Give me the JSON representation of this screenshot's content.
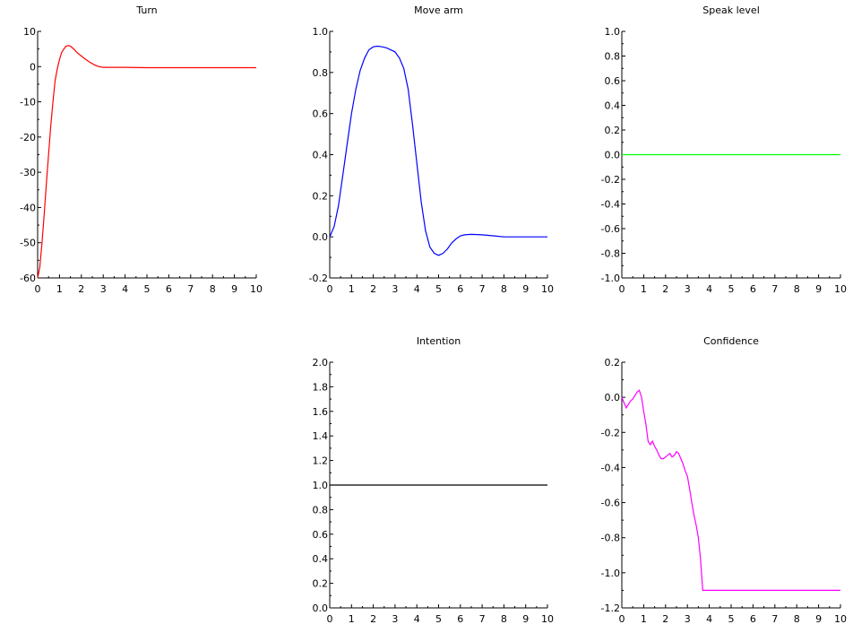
{
  "chart_data": [
    {
      "type": "line",
      "title": "Turn",
      "xlim": [
        0,
        10
      ],
      "ylim": [
        -60,
        10
      ],
      "xticks": [
        "0",
        "1",
        "2",
        "3",
        "4",
        "5",
        "6",
        "7",
        "8",
        "9",
        "10"
      ],
      "yticks": [
        "10",
        "0",
        "-10",
        "-20",
        "-30",
        "-40",
        "-50",
        "-60"
      ],
      "yvalues": [
        10,
        0,
        -10,
        -20,
        -30,
        -40,
        -50,
        -60
      ],
      "color": "#ff0000",
      "grid": false,
      "series": [
        {
          "x": [
            0,
            0.1,
            0.2,
            0.3,
            0.4,
            0.5,
            0.6,
            0.7,
            0.8,
            0.9,
            1.0,
            1.1,
            1.2,
            1.3,
            1.4,
            1.5,
            1.6,
            1.7,
            1.8,
            2.0,
            2.2,
            2.4,
            2.6,
            2.8,
            3.0,
            3.5,
            4,
            5,
            6,
            7,
            8,
            9,
            10
          ],
          "y": [
            -60,
            -57,
            -50,
            -42,
            -33,
            -25,
            -17,
            -10,
            -4,
            -0.5,
            2,
            4,
            5,
            5.8,
            6,
            5.8,
            5.3,
            4.7,
            4,
            3,
            2,
            1.2,
            0.5,
            0,
            -0.2,
            -0.2,
            -0.2,
            -0.3,
            -0.3,
            -0.3,
            -0.3,
            -0.3,
            -0.3
          ]
        }
      ]
    },
    {
      "type": "line",
      "title": "Move arm",
      "xlim": [
        0,
        10
      ],
      "ylim": [
        -0.2,
        1.0
      ],
      "xticks": [
        "0",
        "1",
        "2",
        "3",
        "4",
        "5",
        "6",
        "7",
        "8",
        "9",
        "10"
      ],
      "yticks": [
        "1.0",
        "0.8",
        "0.6",
        "0.4",
        "0.2",
        "0.0",
        "-0.2"
      ],
      "yvalues": [
        1.0,
        0.8,
        0.6,
        0.4,
        0.2,
        0.0,
        -0.2
      ],
      "color": "#0000ff",
      "grid": false,
      "series": [
        {
          "x": [
            0,
            0.2,
            0.4,
            0.6,
            0.8,
            1.0,
            1.2,
            1.4,
            1.6,
            1.8,
            2.0,
            2.2,
            2.4,
            2.6,
            2.8,
            3.0,
            3.2,
            3.4,
            3.6,
            3.8,
            4.0,
            4.2,
            4.4,
            4.6,
            4.8,
            5.0,
            5.2,
            5.4,
            5.6,
            5.8,
            6.0,
            6.2,
            6.5,
            7,
            7.5,
            8,
            9,
            10
          ],
          "y": [
            0,
            0.05,
            0.15,
            0.3,
            0.45,
            0.6,
            0.72,
            0.81,
            0.87,
            0.91,
            0.925,
            0.928,
            0.925,
            0.92,
            0.91,
            0.9,
            0.87,
            0.82,
            0.72,
            0.55,
            0.36,
            0.17,
            0.03,
            -0.05,
            -0.08,
            -0.09,
            -0.08,
            -0.06,
            -0.03,
            -0.01,
            0.005,
            0.01,
            0.012,
            0.01,
            0.005,
            0.0,
            0.0,
            0.0
          ]
        }
      ]
    },
    {
      "type": "line",
      "title": "Speak level",
      "xlim": [
        0,
        10
      ],
      "ylim": [
        -1.0,
        1.0
      ],
      "xticks": [
        "0",
        "1",
        "2",
        "3",
        "4",
        "5",
        "6",
        "7",
        "8",
        "9",
        "10"
      ],
      "yticks": [
        "1.0",
        "0.8",
        "0.6",
        "0.4",
        "0.2",
        "0.0",
        "-0.2",
        "-0.4",
        "-0.6",
        "-0.8",
        "-1.0"
      ],
      "yvalues": [
        1.0,
        0.8,
        0.6,
        0.4,
        0.2,
        0.0,
        -0.2,
        -0.4,
        -0.6,
        -0.8,
        -1.0
      ],
      "color": "#00ff00",
      "grid": false,
      "series": [
        {
          "x": [
            0,
            10
          ],
          "y": [
            0,
            0
          ]
        }
      ]
    },
    {
      "type": "line",
      "title": "Intention",
      "xlim": [
        0,
        10
      ],
      "ylim": [
        0.0,
        2.0
      ],
      "xticks": [
        "0",
        "1",
        "2",
        "3",
        "4",
        "5",
        "6",
        "7",
        "8",
        "9",
        "10"
      ],
      "yticks": [
        "2.0",
        "1.8",
        "1.6",
        "1.4",
        "1.2",
        "1.0",
        "0.8",
        "0.6",
        "0.4",
        "0.2",
        "0.0"
      ],
      "yvalues": [
        2.0,
        1.8,
        1.6,
        1.4,
        1.2,
        1.0,
        0.8,
        0.6,
        0.4,
        0.2,
        0.0
      ],
      "color": "#000000",
      "grid": false,
      "series": [
        {
          "x": [
            0,
            10
          ],
          "y": [
            1,
            1
          ]
        }
      ]
    },
    {
      "type": "line",
      "title": "Confidence",
      "xlim": [
        0,
        10
      ],
      "ylim": [
        -1.2,
        0.2
      ],
      "xticks": [
        "0",
        "1",
        "2",
        "3",
        "4",
        "5",
        "6",
        "7",
        "8",
        "9",
        "10"
      ],
      "yticks": [
        "0.2",
        "0.0",
        "-0.2",
        "-0.4",
        "-0.6",
        "-0.8",
        "-1.0",
        "-1.2"
      ],
      "yvalues": [
        0.2,
        0.0,
        -0.2,
        -0.4,
        -0.6,
        -0.8,
        -1.0,
        -1.2
      ],
      "color": "#ff00ff",
      "grid": false,
      "series": [
        {
          "x": [
            0,
            0.1,
            0.2,
            0.3,
            0.4,
            0.5,
            0.6,
            0.7,
            0.8,
            0.9,
            1.0,
            1.1,
            1.2,
            1.3,
            1.4,
            1.5,
            1.6,
            1.7,
            1.8,
            1.9,
            2.0,
            2.1,
            2.2,
            2.3,
            2.4,
            2.5,
            2.6,
            2.7,
            2.8,
            2.9,
            3.0,
            3.1,
            3.2,
            3.3,
            3.4,
            3.5,
            3.6,
            3.7,
            3.8,
            4.0,
            5,
            6,
            7,
            8,
            9,
            10
          ],
          "y": [
            0,
            -0.03,
            -0.06,
            -0.04,
            -0.02,
            -0.01,
            0.01,
            0.03,
            0.04,
            0.0,
            -0.08,
            -0.15,
            -0.25,
            -0.27,
            -0.25,
            -0.28,
            -0.3,
            -0.33,
            -0.35,
            -0.35,
            -0.34,
            -0.33,
            -0.32,
            -0.34,
            -0.33,
            -0.31,
            -0.32,
            -0.35,
            -0.38,
            -0.42,
            -0.45,
            -0.52,
            -0.6,
            -0.67,
            -0.73,
            -0.8,
            -0.92,
            -1.1,
            -1.1,
            -1.1,
            -1.1,
            -1.1,
            -1.1,
            -1.1,
            -1.1,
            -1.1
          ]
        }
      ]
    }
  ]
}
